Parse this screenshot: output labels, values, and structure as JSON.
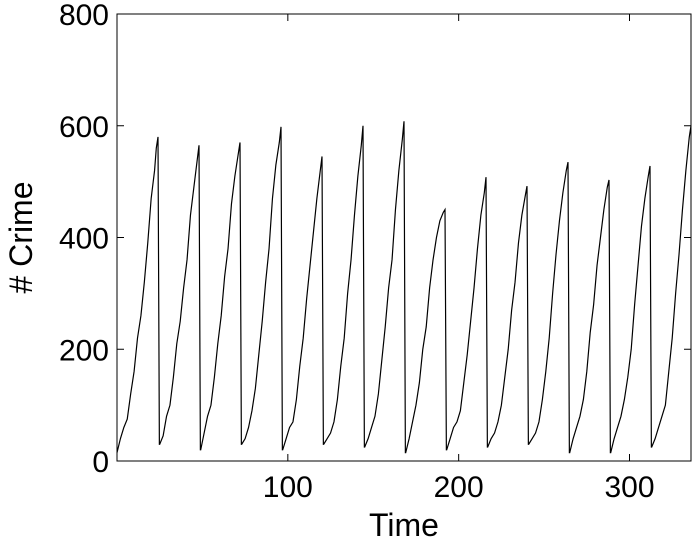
{
  "chart_data": {
    "type": "line",
    "xlabel": "Time",
    "ylabel": "# Crime",
    "xlim": [
      0,
      336
    ],
    "ylim": [
      0,
      800
    ],
    "xticks": [
      100,
      200,
      300
    ],
    "yticks": [
      0,
      200,
      400,
      600,
      800
    ],
    "grid": false,
    "line_color": "#000000",
    "series": [
      {
        "x": [
          0,
          2,
          4,
          6,
          8,
          10,
          12,
          14,
          16,
          18,
          20,
          22,
          23,
          24,
          24.8,
          25,
          27,
          29,
          31,
          33,
          35,
          37,
          39,
          41,
          43,
          45,
          47,
          48,
          48.8,
          49,
          51,
          53,
          55,
          57,
          59,
          61,
          63,
          65,
          67,
          69,
          71,
          72,
          72.8,
          73,
          75,
          77,
          79,
          81,
          83,
          85,
          87,
          89,
          91,
          93,
          95,
          96,
          96.8,
          97,
          99,
          101,
          103,
          105,
          107,
          109,
          111,
          113,
          115,
          117,
          119,
          120,
          120.8,
          121,
          123,
          125,
          127,
          129,
          131,
          133,
          135,
          137,
          139,
          141,
          143,
          144,
          144.8,
          145,
          147,
          149,
          151,
          153,
          155,
          157,
          159,
          161,
          163,
          165,
          167,
          168,
          168.8,
          169,
          171,
          173,
          175,
          177,
          179,
          181,
          183,
          185,
          187,
          189,
          191,
          192,
          192.8,
          193,
          195,
          197,
          199,
          201,
          203,
          205,
          207,
          209,
          211,
          213,
          215,
          216,
          216.8,
          217,
          219,
          221,
          223,
          225,
          227,
          229,
          231,
          233,
          235,
          237,
          239,
          240,
          240.8,
          241,
          243,
          245,
          247,
          249,
          251,
          253,
          255,
          257,
          259,
          261,
          263,
          264,
          264.8,
          265,
          267,
          269,
          271,
          273,
          275,
          277,
          279,
          281,
          283,
          285,
          287,
          288,
          288.8,
          289,
          291,
          293,
          295,
          297,
          299,
          301,
          303,
          305,
          307,
          309,
          311,
          312,
          312.8,
          313,
          315,
          317,
          319,
          321,
          323,
          325,
          327,
          329,
          331,
          333,
          335,
          336
        ],
        "y": [
          15,
          40,
          60,
          75,
          120,
          160,
          220,
          260,
          320,
          390,
          470,
          520,
          560,
          580,
          30,
          30,
          45,
          80,
          100,
          150,
          210,
          250,
          310,
          360,
          440,
          490,
          540,
          565,
          20,
          20,
          50,
          80,
          100,
          150,
          210,
          260,
          330,
          380,
          460,
          510,
          550,
          570,
          30,
          30,
          40,
          60,
          90,
          130,
          190,
          250,
          320,
          380,
          470,
          530,
          570,
          598,
          20,
          20,
          40,
          60,
          70,
          110,
          170,
          220,
          290,
          350,
          410,
          470,
          520,
          545,
          30,
          30,
          40,
          50,
          70,
          110,
          170,
          220,
          300,
          360,
          440,
          510,
          565,
          600,
          25,
          25,
          40,
          60,
          80,
          120,
          180,
          240,
          310,
          360,
          450,
          520,
          575,
          608,
          15,
          15,
          40,
          70,
          100,
          140,
          200,
          240,
          310,
          360,
          400,
          430,
          445,
          450,
          20,
          20,
          40,
          60,
          70,
          90,
          140,
          190,
          250,
          310,
          380,
          440,
          480,
          508,
          25,
          25,
          40,
          50,
          70,
          100,
          150,
          200,
          270,
          320,
          390,
          440,
          475,
          492,
          30,
          30,
          40,
          50,
          70,
          110,
          160,
          220,
          300,
          370,
          430,
          480,
          520,
          535,
          15,
          15,
          40,
          60,
          80,
          110,
          160,
          230,
          280,
          350,
          400,
          450,
          490,
          503,
          15,
          15,
          40,
          60,
          80,
          110,
          150,
          200,
          280,
          350,
          420,
          470,
          510,
          528,
          25,
          25,
          40,
          60,
          80,
          100,
          160,
          220,
          300,
          370,
          450,
          520,
          580,
          600
        ]
      }
    ]
  }
}
